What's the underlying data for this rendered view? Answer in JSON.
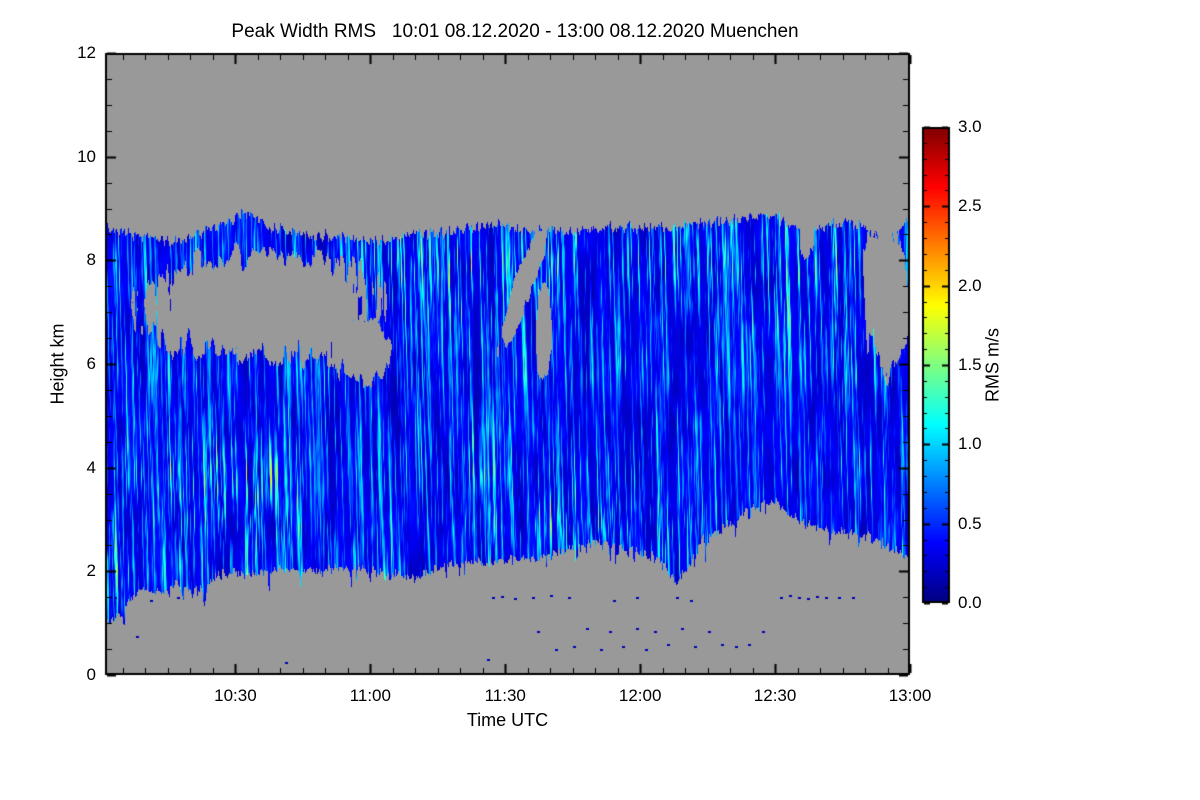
{
  "chart_data": {
    "type": "heatmap",
    "title": "Peak Width RMS   10:01 08.12.2020 - 13:00 08.12.2020 Muenchen",
    "xlabel": "Time UTC",
    "ylabel": "Height km",
    "colorbar_label": "RMS m/s",
    "station": "Muenchen",
    "time_start": "10:01 08.12.2020",
    "time_end": "13:00 08.12.2020",
    "x_range_minutes": [
      0,
      179
    ],
    "x_ticks": [
      {
        "label": "10:30",
        "minute": 29
      },
      {
        "label": "11:00",
        "minute": 59
      },
      {
        "label": "11:30",
        "minute": 89
      },
      {
        "label": "12:00",
        "minute": 119
      },
      {
        "label": "12:30",
        "minute": 149
      },
      {
        "label": "13:00",
        "minute": 179
      }
    ],
    "x_minor_step_min": 5,
    "x_minor_offset_min": 4,
    "y_range_km": [
      0,
      12
    ],
    "y_ticks": [
      0,
      2,
      4,
      6,
      8,
      10,
      12
    ],
    "y_minor_step_km": 0.5,
    "color_range": [
      0.0,
      3.0
    ],
    "colorbar_ticks": [
      "0.0",
      "0.5",
      "1.0",
      "1.5",
      "2.0",
      "2.5",
      "3.0"
    ],
    "colorbar_minor_step": 0.1,
    "colormap": "jet",
    "no_data_color": "#999999",
    "frame_color": "#000000",
    "text_color": "#000000",
    "field": {
      "description": "Cloud-radar peak width RMS, mostly 0.1-0.6 m/s (dark blue) with vertical cyan streaks up to ~1.3 m/s; gray = no signal. Echo spans ~2-8.7 km with clear-air gap 6-8 km between 10:10-11:00 and sparse specks below 1.5 km.",
      "seed": 1337,
      "base_value_range": [
        0.1,
        0.5
      ],
      "streak_peak_value": 1.4,
      "top_envelope": [
        [
          0,
          8.6
        ],
        [
          8,
          8.45
        ],
        [
          15,
          8.35
        ],
        [
          22,
          8.55
        ],
        [
          28,
          8.75
        ],
        [
          31,
          8.95
        ],
        [
          34,
          8.8
        ],
        [
          38,
          8.6
        ],
        [
          45,
          8.5
        ],
        [
          52,
          8.45
        ],
        [
          58,
          8.35
        ],
        [
          64,
          8.4
        ],
        [
          70,
          8.5
        ],
        [
          76,
          8.55
        ],
        [
          82,
          8.65
        ],
        [
          88,
          8.7
        ],
        [
          93,
          8.55
        ],
        [
          98,
          8.6
        ],
        [
          104,
          8.55
        ],
        [
          110,
          8.6
        ],
        [
          118,
          8.65
        ],
        [
          125,
          8.6
        ],
        [
          132,
          8.7
        ],
        [
          138,
          8.75
        ],
        [
          145,
          8.85
        ],
        [
          150,
          8.8
        ],
        [
          155,
          8.6
        ],
        [
          160,
          8.65
        ],
        [
          165,
          8.75
        ],
        [
          169,
          8.6
        ],
        [
          173,
          8.45
        ],
        [
          176,
          8.5
        ],
        [
          179,
          8.75
        ]
      ],
      "bottom_envelope": [
        [
          0,
          1.0
        ],
        [
          3,
          1.15
        ],
        [
          6,
          1.5
        ],
        [
          9,
          1.7
        ],
        [
          12,
          1.55
        ],
        [
          16,
          1.75
        ],
        [
          20,
          1.6
        ],
        [
          24,
          1.85
        ],
        [
          28,
          2.0
        ],
        [
          33,
          1.9
        ],
        [
          38,
          2.05
        ],
        [
          44,
          2.0
        ],
        [
          50,
          2.05
        ],
        [
          56,
          2.1
        ],
        [
          60,
          2.0
        ],
        [
          64,
          1.9
        ],
        [
          70,
          1.95
        ],
        [
          76,
          2.1
        ],
        [
          82,
          2.15
        ],
        [
          88,
          2.2
        ],
        [
          94,
          2.25
        ],
        [
          100,
          2.35
        ],
        [
          105,
          2.5
        ],
        [
          110,
          2.55
        ],
        [
          115,
          2.45
        ],
        [
          120,
          2.35
        ],
        [
          124,
          2.2
        ],
        [
          127,
          1.75
        ],
        [
          130,
          2.1
        ],
        [
          133,
          2.6
        ],
        [
          137,
          2.8
        ],
        [
          141,
          3.05
        ],
        [
          145,
          3.25
        ],
        [
          149,
          3.35
        ],
        [
          152,
          3.1
        ],
        [
          156,
          2.95
        ],
        [
          160,
          2.85
        ],
        [
          164,
          2.75
        ],
        [
          168,
          2.7
        ],
        [
          172,
          2.6
        ],
        [
          176,
          2.4
        ],
        [
          179,
          2.2
        ]
      ],
      "holes": [
        {
          "t": 35,
          "h": 7.1,
          "rt": 27,
          "rh": 1.05,
          "dtdh": 0,
          "name": "main-clear-gap"
        },
        {
          "t": 57,
          "h": 6.25,
          "rt": 7,
          "rh": 0.6,
          "dtdh": 0,
          "name": "gap-extension"
        },
        {
          "t": 93,
          "h": 7.5,
          "rt": 2.2,
          "rh": 1.3,
          "dtdh": -3.8,
          "name": "slanted-slit-1130"
        },
        {
          "t": 97.5,
          "h": 6.6,
          "rt": 1.8,
          "rh": 0.9,
          "dtdh": 0,
          "name": "small-gap-1138"
        },
        {
          "t": 173.5,
          "h": 7.4,
          "rt": 5.0,
          "rh": 1.5,
          "dtdh": 0,
          "name": "right-edge-gap"
        },
        {
          "t": 156,
          "h": 8.45,
          "rt": 1.5,
          "rh": 0.5,
          "dtdh": 0,
          "name": "notch-1233"
        }
      ],
      "bright_regions": [
        {
          "t": 3,
          "h": 2.2,
          "rt": 4,
          "rh": 1.2,
          "a": 0.7
        },
        {
          "t": 24,
          "h": 3.6,
          "rt": 13,
          "rh": 1.1,
          "a": 0.95
        },
        {
          "t": 35,
          "h": 3.2,
          "rt": 8,
          "rh": 0.9,
          "a": 0.5
        },
        {
          "t": 62,
          "h": 7.9,
          "rt": 6,
          "rh": 0.8,
          "a": 0.5
        },
        {
          "t": 80,
          "h": 7.6,
          "rt": 13,
          "rh": 1.1,
          "a": 0.6
        },
        {
          "t": 84,
          "h": 4.3,
          "rt": 6,
          "rh": 0.8,
          "a": 0.55
        },
        {
          "t": 100,
          "h": 7.8,
          "rt": 8,
          "rh": 0.9,
          "a": 0.5
        },
        {
          "t": 107,
          "h": 2.9,
          "rt": 20,
          "rh": 0.55,
          "a": 0.95
        },
        {
          "t": 127,
          "h": 7.9,
          "rt": 10,
          "rh": 1.0,
          "a": 0.55
        },
        {
          "t": 148,
          "h": 7.6,
          "rt": 10,
          "rh": 1.2,
          "a": 0.6
        },
        {
          "t": 166,
          "h": 7.4,
          "rt": 8,
          "rh": 1.3,
          "a": 0.5
        }
      ],
      "isolated_dots": [
        [
          7,
          0.75
        ],
        [
          10,
          1.45
        ],
        [
          2,
          1.5
        ],
        [
          16,
          1.5
        ],
        [
          40,
          0.25
        ],
        [
          86,
          1.5
        ],
        [
          88,
          1.52
        ],
        [
          91,
          1.48
        ],
        [
          95,
          1.5
        ],
        [
          99,
          1.55
        ],
        [
          103,
          1.5
        ],
        [
          85,
          0.3
        ],
        [
          96,
          0.85
        ],
        [
          100,
          0.5
        ],
        [
          104,
          0.55
        ],
        [
          107,
          0.9
        ],
        [
          110,
          0.5
        ],
        [
          112,
          0.85
        ],
        [
          115,
          0.55
        ],
        [
          118,
          0.9
        ],
        [
          120,
          0.5
        ],
        [
          122,
          0.85
        ],
        [
          125,
          0.6
        ],
        [
          128,
          0.9
        ],
        [
          131,
          0.55
        ],
        [
          134,
          0.85
        ],
        [
          137,
          0.6
        ],
        [
          140,
          0.55
        ],
        [
          127,
          1.5
        ],
        [
          130,
          1.45
        ],
        [
          143,
          0.6
        ],
        [
          146,
          0.85
        ],
        [
          150,
          1.5
        ],
        [
          152,
          1.55
        ],
        [
          154,
          1.5
        ],
        [
          156,
          1.48
        ],
        [
          158,
          1.52
        ],
        [
          160,
          1.5
        ],
        [
          163,
          1.5
        ],
        [
          166,
          1.5
        ],
        [
          113,
          1.45
        ],
        [
          118,
          1.5
        ]
      ]
    }
  }
}
